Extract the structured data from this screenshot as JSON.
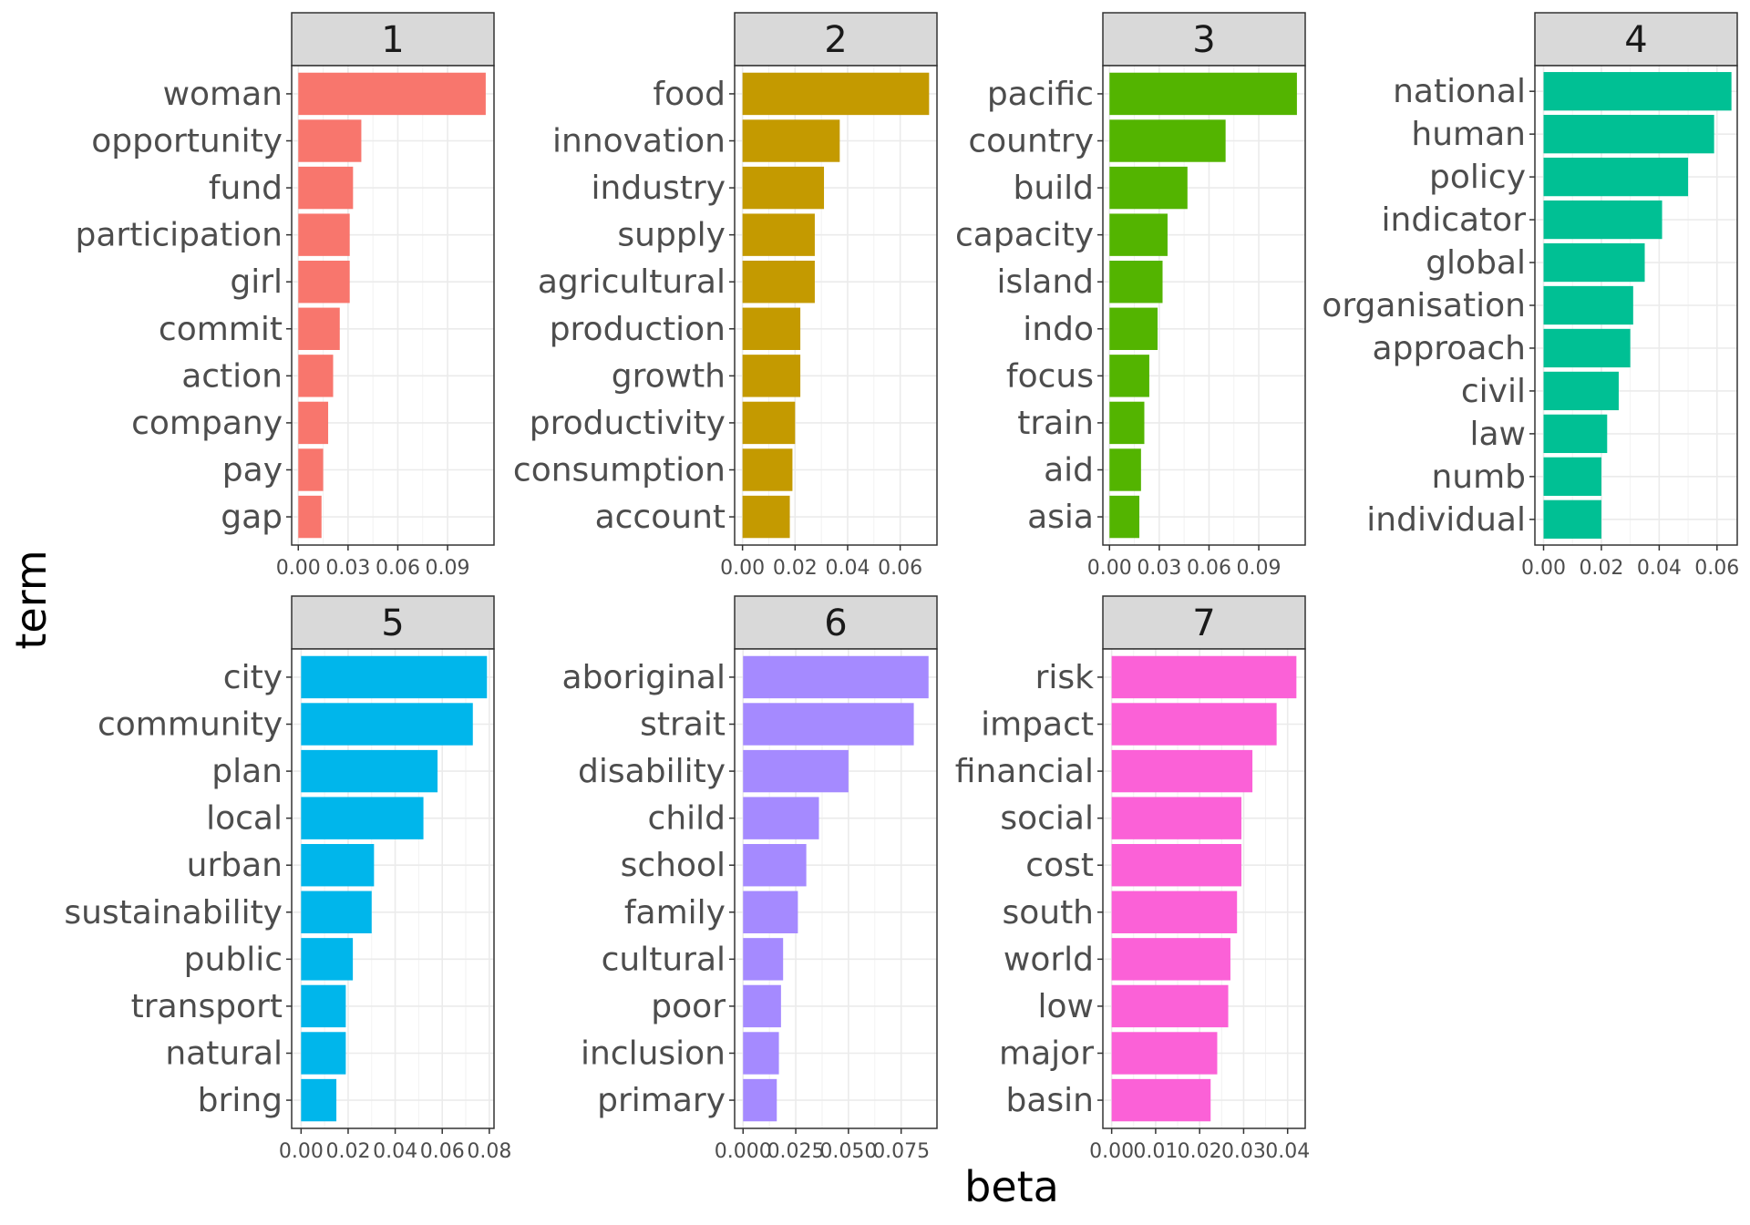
{
  "chart_data": {
    "type": "bar",
    "orientation": "horizontal",
    "facet_layout": "4 columns x 2 rows",
    "xlabel": "beta",
    "ylabel": "term",
    "grid": true,
    "legend": "none",
    "panels": [
      {
        "strip": "1",
        "color": "#F8766D",
        "categories": [
          "woman",
          "opportunity",
          "fund",
          "participation",
          "girl",
          "commit",
          "action",
          "company",
          "pay",
          "gap"
        ],
        "values": [
          0.113,
          0.038,
          0.033,
          0.031,
          0.031,
          0.025,
          0.021,
          0.018,
          0.015,
          0.014
        ],
        "xlim": [
          -0.004,
          0.118
        ],
        "ticks": [
          0,
          0.03,
          0.06,
          0.09
        ],
        "tick_labels": [
          "0.00",
          "0.03",
          "0.06",
          "0.09"
        ]
      },
      {
        "strip": "2",
        "color": "#C49A00",
        "categories": [
          "food",
          "innovation",
          "industry",
          "supply",
          "agricultural",
          "production",
          "growth",
          "productivity",
          "consumption",
          "account"
        ],
        "values": [
          0.071,
          0.037,
          0.031,
          0.0275,
          0.0275,
          0.022,
          0.022,
          0.02,
          0.019,
          0.018
        ],
        "xlim": [
          -0.003,
          0.074
        ],
        "ticks": [
          0,
          0.02,
          0.04,
          0.06
        ],
        "tick_labels": [
          "0.00",
          "0.02",
          "0.04",
          "0.06"
        ]
      },
      {
        "strip": "3",
        "color": "#53B400",
        "categories": [
          "pacific",
          "country",
          "build",
          "capacity",
          "island",
          "indo",
          "focus",
          "train",
          "aid",
          "asia"
        ],
        "values": [
          0.113,
          0.07,
          0.047,
          0.035,
          0.032,
          0.029,
          0.024,
          0.021,
          0.019,
          0.018
        ],
        "xlim": [
          -0.004,
          0.118
        ],
        "ticks": [
          0,
          0.03,
          0.06,
          0.09
        ],
        "tick_labels": [
          "0.00",
          "0.03",
          "0.06",
          "0.09"
        ]
      },
      {
        "strip": "4",
        "color": "#00C094",
        "categories": [
          "national",
          "human",
          "policy",
          "indicator",
          "global",
          "organisation",
          "approach",
          "civil",
          "law",
          "numb",
          "individual"
        ],
        "values": [
          0.065,
          0.059,
          0.05,
          0.041,
          0.035,
          0.031,
          0.03,
          0.026,
          0.022,
          0.02,
          0.02
        ],
        "xlim": [
          -0.003,
          0.067
        ],
        "ticks": [
          0,
          0.02,
          0.04,
          0.06
        ],
        "tick_labels": [
          "0.00",
          "0.02",
          "0.04",
          "0.06"
        ]
      },
      {
        "strip": "5",
        "color": "#00B6EB",
        "categories": [
          "city",
          "community",
          "plan",
          "local",
          "urban",
          "sustainability",
          "public",
          "transport",
          "natural",
          "bring"
        ],
        "values": [
          0.079,
          0.073,
          0.058,
          0.052,
          0.031,
          0.03,
          0.022,
          0.019,
          0.019,
          0.015
        ],
        "xlim": [
          -0.004,
          0.082
        ],
        "ticks": [
          0,
          0.02,
          0.04,
          0.06,
          0.08
        ],
        "tick_labels": [
          "0.00",
          "0.02",
          "0.04",
          "0.06",
          "0.08"
        ]
      },
      {
        "strip": "6",
        "color": "#A58AFF",
        "categories": [
          "aboriginal",
          "strait",
          "disability",
          "child",
          "school",
          "family",
          "cultural",
          "poor",
          "inclusion",
          "primary"
        ],
        "values": [
          0.088,
          0.081,
          0.05,
          0.036,
          0.03,
          0.026,
          0.019,
          0.018,
          0.017,
          0.016
        ],
        "xlim": [
          -0.004,
          0.092
        ],
        "ticks": [
          0,
          0.025,
          0.05,
          0.075
        ],
        "tick_labels": [
          "0.000",
          "0.025",
          "0.050",
          "0.075"
        ]
      },
      {
        "strip": "7",
        "color": "#FB61D7",
        "categories": [
          "risk",
          "impact",
          "financial",
          "social",
          "cost",
          "south",
          "world",
          "low",
          "major",
          "basin"
        ],
        "values": [
          0.042,
          0.0375,
          0.032,
          0.0295,
          0.0295,
          0.0285,
          0.027,
          0.0265,
          0.024,
          0.0225
        ],
        "xlim": [
          -0.002,
          0.044
        ],
        "ticks": [
          0,
          0.01,
          0.02,
          0.03,
          0.04
        ],
        "tick_labels": [
          "0.00",
          "0.01",
          "0.02",
          "0.03",
          "0.04"
        ]
      }
    ]
  }
}
